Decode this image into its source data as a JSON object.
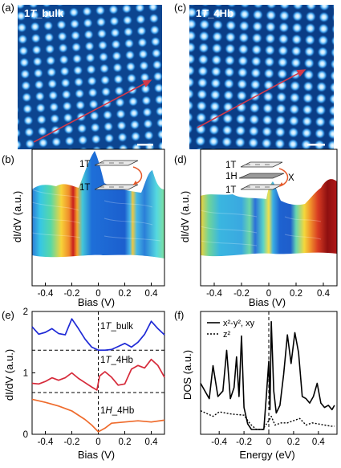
{
  "panels": {
    "a": {
      "label": "(a)",
      "title_main": "1",
      "title_italic": "T",
      "title_rest": "_bulk"
    },
    "b": {
      "label": "(b)",
      "ylabel": "dI/dV (a.u.)",
      "xlabel": "Bias (V)",
      "xticks": [
        "-0.4",
        "-0.2",
        "0",
        "0.2",
        "0.4"
      ],
      "layer_top": "1T",
      "layer_bot": "1T"
    },
    "c": {
      "label": "(c)",
      "title_main": "1",
      "title_italic": "T",
      "title_rest": "_4Hb"
    },
    "d": {
      "label": "(d)",
      "ylabel": "dI/dV (a.u.)",
      "xlabel": "Bias (V)",
      "xticks": [
        "-0.4",
        "-0.2",
        "0",
        "0.2",
        "0.4"
      ],
      "layer_top": "1T",
      "layer_mid": "1H",
      "layer_bot": "1T",
      "cross": "X"
    },
    "e": {
      "label": "(e)",
      "ylabel": "dI/dV (a.u.)",
      "xlabel": "Bias (V)",
      "xticks": [
        "-0.4",
        "-0.2",
        "0",
        "0.2",
        "0.4"
      ],
      "yticks": [
        "0",
        "1",
        "2"
      ],
      "curve_labels": [
        {
          "main": "1",
          "italic": "T",
          "rest": "_bulk"
        },
        {
          "main": "1",
          "italic": "T",
          "rest": "_4Hb"
        },
        {
          "main": "1",
          "italic": "H",
          "rest": "_4Hb"
        }
      ]
    },
    "f": {
      "label": "(f)",
      "ylabel": "DOS (a.u.)",
      "xlabel": "Energy (eV)",
      "xticks": [
        "-0.4",
        "-0.2",
        "0",
        "0.2",
        "0.4"
      ],
      "legend": [
        "x²-y², xy",
        "z²"
      ]
    }
  },
  "colors": {
    "stm_bg": "#0a3f86",
    "atom": "#dff3ff",
    "arrow": "#d1394a",
    "blue": "#1f2ad6",
    "red": "#d62a3a",
    "orange": "#ef6b2c"
  },
  "chart_data": [
    {
      "type": "line",
      "panel": "e",
      "xlabel": "Bias (V)",
      "ylabel": "dI/dV (a.u.)",
      "xlim": [
        -0.5,
        0.5
      ],
      "ylim": [
        0,
        2
      ],
      "series": [
        {
          "name": "1T_bulk",
          "x": [
            -0.5,
            -0.45,
            -0.4,
            -0.35,
            -0.3,
            -0.25,
            -0.2,
            -0.15,
            -0.1,
            -0.05,
            0,
            0.05,
            0.1,
            0.15,
            0.2,
            0.25,
            0.3,
            0.35,
            0.4,
            0.45,
            0.5
          ],
          "y": [
            1.75,
            1.63,
            1.66,
            1.72,
            1.64,
            1.62,
            1.88,
            1.72,
            1.55,
            1.42,
            1.37,
            1.37,
            1.38,
            1.43,
            1.48,
            1.42,
            1.5,
            1.63,
            1.84,
            1.72,
            1.62
          ]
        },
        {
          "name": "1T_4Hb",
          "x": [
            -0.5,
            -0.45,
            -0.4,
            -0.35,
            -0.3,
            -0.25,
            -0.2,
            -0.15,
            -0.1,
            -0.05,
            -0.01,
            0.01,
            0.05,
            0.1,
            0.15,
            0.2,
            0.25,
            0.3,
            0.35,
            0.4,
            0.45,
            0.5
          ],
          "y": [
            0.83,
            0.82,
            0.86,
            0.92,
            0.88,
            0.92,
            1.0,
            0.91,
            0.84,
            0.77,
            0.72,
            0.95,
            1.02,
            0.93,
            0.8,
            0.82,
            1.06,
            1.12,
            1.08,
            1.22,
            1.12,
            0.93
          ]
        },
        {
          "name": "1H_4Hb",
          "x": [
            -0.5,
            -0.4,
            -0.3,
            -0.2,
            -0.1,
            -0.05,
            0,
            0.05,
            0.1,
            0.2,
            0.3,
            0.4,
            0.5
          ],
          "y": [
            0.57,
            0.52,
            0.46,
            0.38,
            0.24,
            0.15,
            0.04,
            0.1,
            0.18,
            0.2,
            0.22,
            0.2,
            0.23
          ]
        }
      ]
    },
    {
      "type": "line",
      "panel": "f",
      "xlabel": "Energy (eV)",
      "ylabel": "DOS (a.u.)",
      "xlim": [
        -0.55,
        0.55
      ],
      "series": [
        {
          "name": "x²-y², xy",
          "x": [
            -0.55,
            -0.48,
            -0.45,
            -0.41,
            -0.37,
            -0.34,
            -0.31,
            -0.28,
            -0.26,
            -0.24,
            -0.22,
            -0.2,
            -0.17,
            -0.14,
            -0.11,
            -0.06,
            -0.04,
            -0.02,
            0.0,
            0.01,
            0.02,
            0.04,
            0.06,
            0.09,
            0.12,
            0.15,
            0.18,
            0.21,
            0.24,
            0.27,
            0.3,
            0.33,
            0.36,
            0.39,
            0.42,
            0.45,
            0.48,
            0.51,
            0.53
          ],
          "y": [
            0.42,
            0.28,
            0.58,
            0.3,
            0.35,
            0.72,
            0.28,
            0.38,
            0.66,
            0.3,
            0.85,
            0.2,
            0.05,
            0,
            0,
            0,
            0,
            0.3,
            0.62,
            0.18,
            0.98,
            0.35,
            0.15,
            0.22,
            0.5,
            0.86,
            0.6,
            0.88,
            0.7,
            0.3,
            0.28,
            0.24,
            0.3,
            0.42,
            0.24,
            0.2,
            0.22,
            0.18,
            0.22
          ]
        },
        {
          "name": "z²",
          "x": [
            -0.55,
            -0.45,
            -0.4,
            -0.3,
            -0.2,
            -0.15,
            -0.1,
            -0.05,
            0.0,
            0.02,
            0.05,
            0.1,
            0.15,
            0.2,
            0.25,
            0.3,
            0.35,
            0.4,
            0.45,
            0.5,
            0.53
          ],
          "y": [
            0.17,
            0.12,
            0.16,
            0.14,
            0.13,
            0.05,
            0,
            0,
            0.08,
            0.12,
            0.04,
            0.06,
            0.06,
            0.08,
            0.1,
            0.04,
            0.06,
            0.05,
            0.04,
            0.03,
            0.03
          ]
        }
      ]
    }
  ]
}
